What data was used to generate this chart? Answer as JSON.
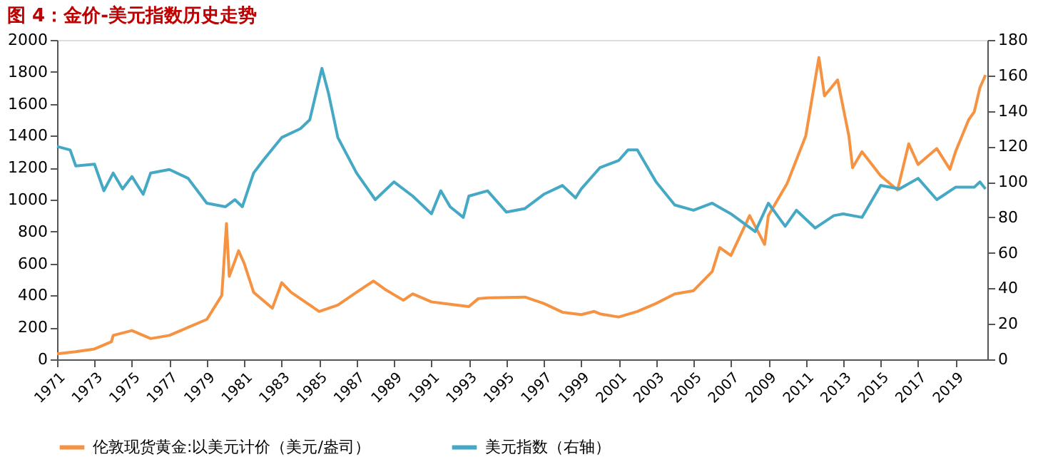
{
  "chart_data": {
    "type": "line",
    "title": "图 4：金价-美元指数历史走势",
    "xlim": [
      1971,
      2020.7
    ],
    "xticks": [
      1971,
      1973,
      1975,
      1977,
      1979,
      1981,
      1983,
      1985,
      1987,
      1989,
      1991,
      1993,
      1995,
      1997,
      1999,
      2001,
      2003,
      2005,
      2007,
      2009,
      2011,
      2013,
      2015,
      2017,
      2019
    ],
    "ylim": [
      0,
      2000
    ],
    "yticks": [
      0,
      200,
      400,
      600,
      800,
      1000,
      1200,
      1400,
      1600,
      1800,
      2000
    ],
    "y2lim": [
      0,
      180
    ],
    "y2ticks": [
      0,
      20,
      40,
      60,
      80,
      100,
      120,
      140,
      160,
      180
    ],
    "grid": false,
    "legend": "bottom",
    "line_style": "solid",
    "marker": "none",
    "series": [
      {
        "name": "伦敦现货黄金:以美元计价（美元/盎司）",
        "color": "#f59342",
        "x": [
          1971,
          1972,
          1973,
          1973.9,
          1974,
          1975,
          1976,
          1977,
          1978,
          1979,
          1979.8,
          1980.05,
          1980.2,
          1980.7,
          1981,
          1981.5,
          1982.5,
          1983,
          1983.5,
          1984,
          1985,
          1986,
          1987,
          1987.9,
          1988.5,
          1989.5,
          1990,
          1991,
          1992,
          1993,
          1993.5,
          1994,
          1996,
          1997,
          1998,
          1999,
          1999.7,
          2000,
          2001,
          2002,
          2003,
          2004,
          2005,
          2006,
          2006.4,
          2007,
          2008,
          2008.8,
          2009,
          2010,
          2011,
          2011.7,
          2012,
          2012.7,
          2013.3,
          2013.5,
          2014,
          2015,
          2015.9,
          2016.5,
          2017,
          2018,
          2018.7,
          2019,
          2019.7,
          2020,
          2020.3,
          2020.6
        ],
        "values": [
          35,
          48,
          65,
          110,
          150,
          180,
          130,
          150,
          200,
          250,
          400,
          850,
          520,
          680,
          600,
          420,
          320,
          480,
          420,
          380,
          300,
          340,
          420,
          490,
          440,
          370,
          410,
          360,
          345,
          330,
          380,
          385,
          390,
          350,
          295,
          280,
          300,
          285,
          265,
          300,
          350,
          410,
          430,
          550,
          700,
          650,
          900,
          720,
          900,
          1100,
          1400,
          1890,
          1650,
          1750,
          1400,
          1200,
          1300,
          1150,
          1060,
          1350,
          1220,
          1320,
          1190,
          1300,
          1500,
          1550,
          1700,
          1780
        ]
      },
      {
        "name": "美元指数（右轴）",
        "color": "#45a8c4",
        "axis": "y2",
        "x": [
          1971,
          1971.7,
          1972,
          1973,
          1973.5,
          1974,
          1974.5,
          1975,
          1975.6,
          1976,
          1977,
          1978,
          1979,
          1980,
          1980.5,
          1980.9,
          1981.5,
          1982,
          1983,
          1984,
          1984.5,
          1985.15,
          1985.5,
          1986,
          1987,
          1988,
          1989,
          1990,
          1991,
          1991.5,
          1992,
          1992.7,
          1993,
          1994,
          1995,
          1996,
          1997,
          1998,
          1998.7,
          1999,
          2000,
          2001,
          2001.5,
          2002,
          2003,
          2004,
          2005,
          2006,
          2007,
          2008.3,
          2009,
          2009.9,
          2010.5,
          2011.5,
          2012.5,
          2013,
          2014,
          2015,
          2016,
          2017,
          2018,
          2019,
          2020,
          2020.3,
          2020.6
        ],
        "values": [
          120,
          118,
          109,
          110,
          95,
          105,
          96,
          103,
          93,
          105,
          107,
          102,
          88,
          86,
          90,
          86,
          105,
          112,
          125,
          130,
          135,
          164,
          150,
          125,
          105,
          90,
          100,
          92,
          82,
          95,
          86,
          80,
          92,
          95,
          83,
          85,
          93,
          98,
          91,
          96,
          108,
          112,
          118,
          118,
          100,
          87,
          84,
          88,
          82,
          72,
          88,
          75,
          84,
          74,
          81,
          82,
          80,
          98,
          96,
          102,
          90,
          97,
          97,
          100,
          96
        ]
      }
    ]
  }
}
